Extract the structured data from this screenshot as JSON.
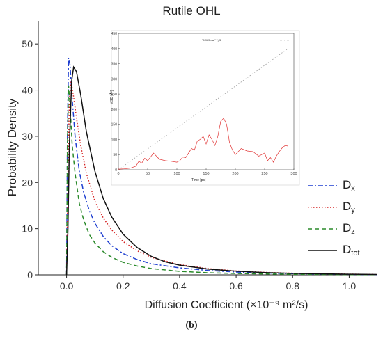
{
  "chart_data": {
    "type": "line",
    "title": "Rutile OHL",
    "xlabel": "Diffusion Coefficient (×10⁻⁹ m²/s)",
    "ylabel": "Probability Density",
    "xlim": [
      -0.1,
      1.1
    ],
    "ylim": [
      0,
      55
    ],
    "xticks": [
      "0.0",
      "0.2",
      "0.4",
      "0.6",
      "0.8",
      "1.0"
    ],
    "yticks": [
      "0",
      "10",
      "20",
      "30",
      "40",
      "50"
    ],
    "legend_position": "right",
    "grid": false,
    "series": [
      {
        "name": "Dx",
        "sub": "x",
        "color": "#1f3fd0",
        "style": "dashdot",
        "x": [
          0.0,
          0.003,
          0.007,
          0.012,
          0.02,
          0.03,
          0.045,
          0.06,
          0.08,
          0.1,
          0.13,
          0.16,
          0.2,
          0.25,
          0.3,
          0.4,
          0.5,
          0.6,
          0.7,
          0.8,
          1.0,
          1.1
        ],
        "y": [
          0,
          30,
          47,
          45.5,
          38,
          30,
          22.5,
          18,
          14,
          11.2,
          8.3,
          6.3,
          4.6,
          3.3,
          2.4,
          1.5,
          0.95,
          0.6,
          0.4,
          0.25,
          0.1,
          0.05
        ]
      },
      {
        "name": "Dy",
        "sub": "y",
        "color": "#d42020",
        "style": "dotted",
        "x": [
          0.0,
          0.005,
          0.01,
          0.016,
          0.025,
          0.035,
          0.05,
          0.07,
          0.1,
          0.13,
          0.16,
          0.2,
          0.25,
          0.3,
          0.4,
          0.5,
          0.6,
          0.7,
          0.8,
          1.0,
          1.1
        ],
        "y": [
          0,
          22,
          38,
          42,
          38.5,
          34,
          28,
          22,
          16,
          12.3,
          9.7,
          7.2,
          5.2,
          3.8,
          2.2,
          1.35,
          0.85,
          0.55,
          0.35,
          0.15,
          0.08
        ]
      },
      {
        "name": "Dz",
        "sub": "z",
        "color": "#2a8a2a",
        "style": "dashed",
        "x": [
          0.0,
          0.003,
          0.007,
          0.012,
          0.02,
          0.03,
          0.045,
          0.06,
          0.08,
          0.1,
          0.13,
          0.16,
          0.2,
          0.25,
          0.3,
          0.4,
          0.5,
          0.6,
          0.8,
          1.0,
          1.1
        ],
        "y": [
          0,
          28,
          41,
          37,
          28,
          22,
          15.5,
          12,
          8.8,
          6.9,
          5.0,
          3.8,
          2.7,
          1.9,
          1.35,
          0.75,
          0.45,
          0.28,
          0.12,
          0.05,
          0.03
        ]
      },
      {
        "name": "Dtot",
        "sub": "tot",
        "color": "#111111",
        "style": "solid",
        "x": [
          0.0,
          0.005,
          0.01,
          0.018,
          0.025,
          0.035,
          0.05,
          0.07,
          0.1,
          0.13,
          0.16,
          0.2,
          0.25,
          0.3,
          0.35,
          0.4,
          0.5,
          0.6,
          0.7,
          0.8,
          1.0,
          1.1
        ],
        "y": [
          0,
          10,
          28,
          42,
          45,
          44,
          39,
          31,
          22.5,
          16.5,
          12.5,
          8.8,
          5.9,
          4.0,
          2.8,
          2.1,
          1.25,
          0.78,
          0.5,
          0.32,
          0.13,
          0.07
        ]
      }
    ],
    "inset": {
      "type": "line",
      "title": "\"5.965.dat\" ¹⁄₁.5",
      "xlabel": "Time [ps]",
      "ylabel": "MSD [Å²]",
      "xlim": [
        0,
        300
      ],
      "ylim": [
        0,
        450
      ],
      "xticks": [
        "0",
        "50",
        "100",
        "150",
        "200",
        "250",
        "300"
      ],
      "yticks": [
        "0",
        "50",
        "100",
        "150",
        "200",
        "250",
        "300",
        "350",
        "400",
        "450"
      ],
      "series": [
        {
          "name": "",
          "color": "#999999",
          "style": "dotted",
          "x": [
            0,
            290
          ],
          "y": [
            0,
            400
          ]
        },
        {
          "name": "",
          "color": "#e03030",
          "style": "solid",
          "x": [
            0,
            10,
            20,
            30,
            35,
            40,
            45,
            50,
            55,
            60,
            65,
            70,
            80,
            90,
            100,
            105,
            110,
            115,
            120,
            125,
            130,
            135,
            140,
            145,
            150,
            155,
            160,
            165,
            170,
            175,
            180,
            185,
            190,
            195,
            200,
            210,
            220,
            230,
            240,
            250,
            255,
            260,
            265,
            270,
            275,
            280,
            285,
            290
          ],
          "y": [
            2,
            3,
            5,
            12,
            28,
            22,
            38,
            30,
            42,
            55,
            45,
            35,
            30,
            28,
            25,
            30,
            42,
            40,
            55,
            70,
            65,
            95,
            100,
            110,
            85,
            115,
            100,
            80,
            110,
            160,
            170,
            150,
            90,
            65,
            50,
            70,
            62,
            60,
            45,
            55,
            30,
            40,
            25,
            45,
            60,
            72,
            80,
            78
          ]
        }
      ]
    }
  },
  "caption": "(b)"
}
